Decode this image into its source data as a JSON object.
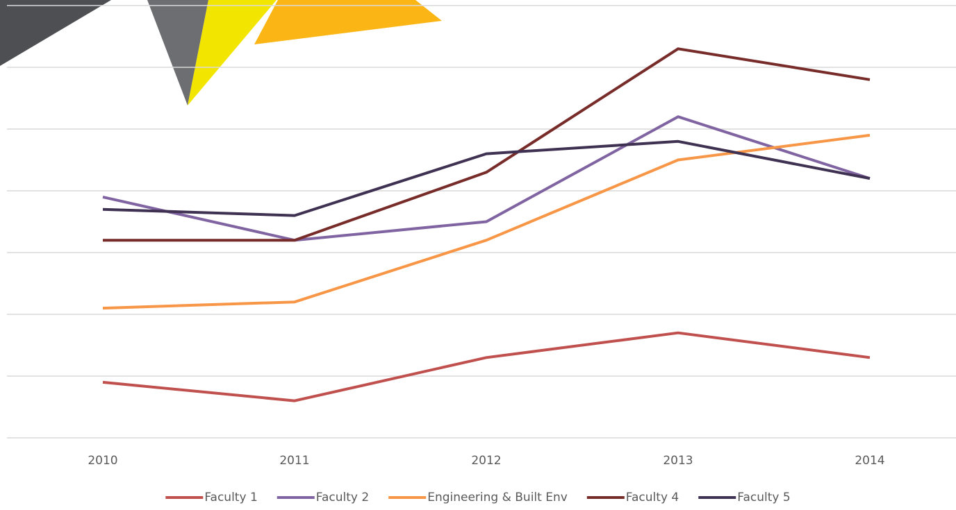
{
  "chart_data": {
    "type": "line",
    "categories": [
      "2010",
      "2011",
      "2012",
      "2013",
      "2014"
    ],
    "series": [
      {
        "name": "Faculty 1",
        "color": "#c0504d",
        "values": [
          0.9,
          0.6,
          1.3,
          1.7,
          1.3
        ]
      },
      {
        "name": "Faculty 2",
        "color": "#8064a2",
        "values": [
          3.9,
          3.2,
          3.5,
          5.2,
          4.2
        ]
      },
      {
        "name": "Engineering & Built Env",
        "color": "#f79646",
        "values": [
          2.1,
          2.2,
          3.2,
          4.5,
          4.9
        ]
      },
      {
        "name": "Faculty 4",
        "color": "#772c2a",
        "values": [
          3.2,
          3.2,
          4.3,
          6.3,
          5.8
        ]
      },
      {
        "name": "Faculty 5",
        "color": "#3f3151",
        "values": [
          3.7,
          3.6,
          4.6,
          4.8,
          4.2
        ]
      }
    ],
    "ylim": [
      0,
      7
    ],
    "yticks": [
      0,
      1,
      2,
      3,
      4,
      5,
      6,
      7
    ],
    "grid": true,
    "legend": "bottom"
  }
}
